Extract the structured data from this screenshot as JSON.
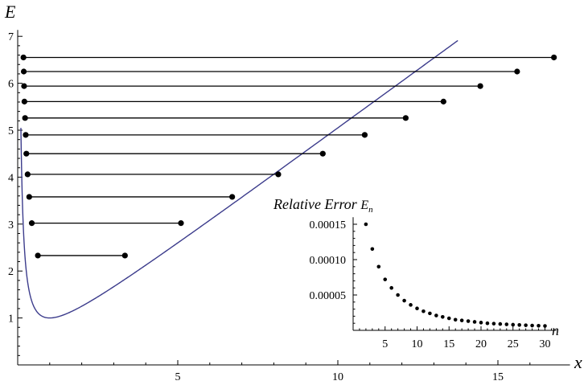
{
  "chart_data": [
    {
      "type": "line",
      "title": "",
      "xlabel": "x",
      "ylabel": "E",
      "xlim": [
        0,
        17
      ],
      "ylim": [
        0,
        7
      ],
      "x_ticks": [
        5,
        10,
        15
      ],
      "y_ticks": [
        1,
        2,
        3,
        4,
        5,
        6,
        7
      ],
      "colors": {
        "curve": "#3c3c8c",
        "levels": "#000000",
        "points": "#000000"
      },
      "series": [
        {
          "type": "curve",
          "function": "E(x) = 1/(2x) + x/2",
          "x_range": [
            0.1,
            17
          ]
        },
        {
          "type": "levels",
          "levels": [
            {
              "E": 2.33,
              "x_left": 0.63,
              "x_right": 3.35
            },
            {
              "E": 3.02,
              "x_left": 0.44,
              "x_right": 5.1
            },
            {
              "E": 3.58,
              "x_left": 0.36,
              "x_right": 6.7
            },
            {
              "E": 4.06,
              "x_left": 0.31,
              "x_right": 8.14
            },
            {
              "E": 4.5,
              "x_left": 0.27,
              "x_right": 9.53
            },
            {
              "E": 4.9,
              "x_left": 0.25,
              "x_right": 10.84
            },
            {
              "E": 5.26,
              "x_left": 0.23,
              "x_right": 12.12
            },
            {
              "E": 5.61,
              "x_left": 0.21,
              "x_right": 13.3
            },
            {
              "E": 5.94,
              "x_left": 0.2,
              "x_right": 14.45
            },
            {
              "E": 6.25,
              "x_left": 0.19,
              "x_right": 15.6
            },
            {
              "E": 6.55,
              "x_left": 0.18,
              "x_right": 16.75
            }
          ]
        }
      ]
    },
    {
      "type": "scatter",
      "title": "Relative Error",
      "title_symbol": "E",
      "title_symbol_sub": "n",
      "xlabel": "n",
      "ylabel": "",
      "xlim": [
        0,
        32
      ],
      "ylim": [
        0,
        0.00016
      ],
      "x_ticks": [
        5,
        10,
        15,
        20,
        25,
        30
      ],
      "y_ticks": [
        {
          "value": 5e-05,
          "label": "0.00005"
        },
        {
          "value": 0.0001,
          "label": "0.00010"
        },
        {
          "value": 0.00015,
          "label": "0.00015"
        }
      ],
      "points": [
        [
          2,
          0.00015
        ],
        [
          3,
          0.000115
        ],
        [
          4,
          9e-05
        ],
        [
          5,
          7.2e-05
        ],
        [
          6,
          6e-05
        ],
        [
          7,
          5e-05
        ],
        [
          8,
          4.2e-05
        ],
        [
          9,
          3.6e-05
        ],
        [
          10,
          3.1e-05
        ],
        [
          11,
          2.7e-05
        ],
        [
          12,
          2.4e-05
        ],
        [
          13,
          2.1e-05
        ],
        [
          14,
          1.9e-05
        ],
        [
          15,
          1.7e-05
        ],
        [
          16,
          1.5e-05
        ],
        [
          17,
          1.4e-05
        ],
        [
          18,
          1.3e-05
        ],
        [
          19,
          1.2e-05
        ],
        [
          20,
          1.1e-05
        ],
        [
          21,
          1e-05
        ],
        [
          22,
          9.5e-06
        ],
        [
          23,
          9e-06
        ],
        [
          24,
          8.5e-06
        ],
        [
          25,
          8e-06
        ],
        [
          26,
          7.6e-06
        ],
        [
          27,
          7.2e-06
        ],
        [
          28,
          6.8e-06
        ],
        [
          29,
          6.5e-06
        ],
        [
          30,
          6.2e-06
        ]
      ]
    }
  ]
}
